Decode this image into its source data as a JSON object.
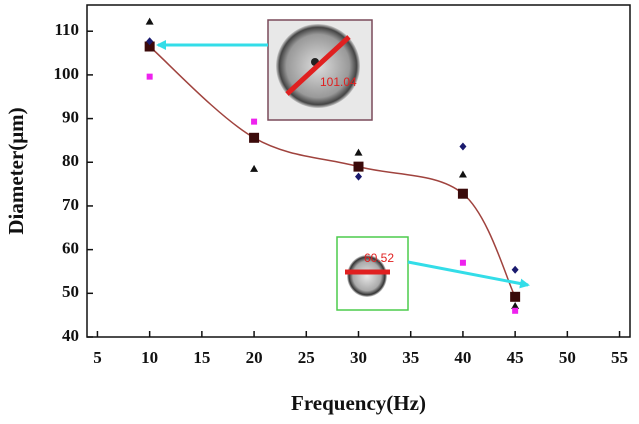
{
  "chart_data": {
    "type": "scatter",
    "x_label": "Frequency(Hz)",
    "y_label": "Diameter(μm)",
    "x": [
      10,
      20,
      30,
      40,
      45
    ],
    "series": [
      {
        "color": "#3b0a0a",
        "marker": "square",
        "line": true,
        "line_color": "#a0433e",
        "values": [
          106.5,
          85.6,
          79,
          72.8,
          49.2
        ]
      },
      {
        "color": "#111111",
        "marker": "triangle",
        "values": [
          112.2,
          78.5,
          82.2,
          77.2,
          47.1
        ]
      },
      {
        "color": "#1a1a6e",
        "marker": "diamond",
        "values": [
          107.7,
          null,
          76.7,
          83.6,
          55.4
        ]
      },
      {
        "color": "#ee22ee",
        "marker": "small-square",
        "values": [
          99.6,
          89.3,
          null,
          57,
          46
        ]
      }
    ],
    "xlim": [
      4,
      56
    ],
    "xticks": [
      5,
      10,
      15,
      20,
      25,
      30,
      35,
      40,
      45,
      50,
      55
    ],
    "ylim": [
      40,
      116
    ],
    "yticks": [
      40,
      50,
      60,
      70,
      80,
      90,
      100,
      110
    ],
    "grid": false,
    "annotations": [
      {
        "text": "101.04"
      },
      {
        "text": "60.52"
      }
    ]
  }
}
